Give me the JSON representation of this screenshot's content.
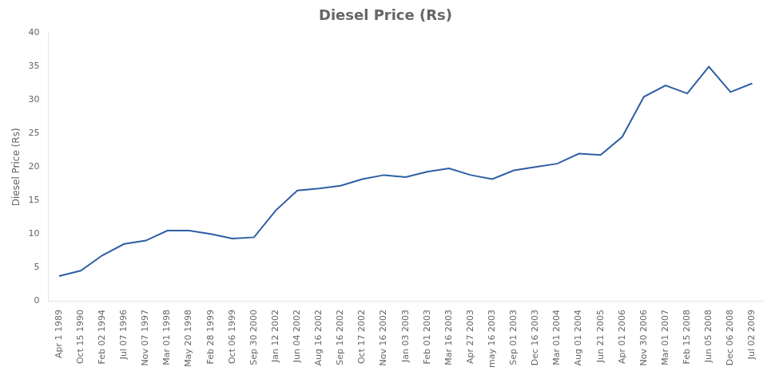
{
  "chart_data": {
    "type": "line",
    "title": "Diesel Price (Rs)",
    "ylabel": "Diesel Price (Rs)",
    "categories": [
      "Apr 1 1989",
      "Oct 15 1990",
      "Feb 02 1994",
      "Jul 07 1996",
      "Nov 07 1997",
      "Mar 01 1998",
      "May 20 1998",
      "Feb 28 1999",
      "Oct 06 1999",
      "Sep 30 2000",
      "Jan 12 2002",
      "Jun 04 2002",
      "Aug 16 2002",
      "Sep 16 2002",
      "Oct 17 2002",
      "Nov 16 2002",
      "Jan 03 2003",
      "Feb 01 2003",
      "Mar 16 2003",
      "Apr 27 2003",
      "may 16 2003",
      "Sep 01 2003",
      "Dec 16 2003",
      "Mar 01 2004",
      "Aug 01 2004",
      "Jun 21 2005",
      "Apr 01 2006",
      "Nov 30 2006",
      "Mar 01 2007",
      "Feb 15 2008",
      "Jun 05 2008",
      "Dec 06 2008",
      "Jul 02 2009"
    ],
    "values": [
      3.7,
      4.5,
      6.8,
      8.5,
      9.0,
      10.5,
      10.5,
      10.0,
      9.3,
      9.5,
      13.5,
      16.5,
      16.8,
      17.2,
      18.2,
      18.8,
      18.5,
      19.3,
      19.8,
      18.8,
      18.2,
      19.5,
      20.0,
      20.5,
      22.0,
      21.8,
      24.5,
      30.5,
      32.2,
      31.0,
      35.0,
      31.2,
      32.5
    ],
    "color": "#2E5FA3",
    "ylim": [
      0,
      40
    ],
    "yticks": [
      0,
      5,
      10,
      15,
      20,
      25,
      30,
      35,
      40
    ],
    "grid": false
  }
}
